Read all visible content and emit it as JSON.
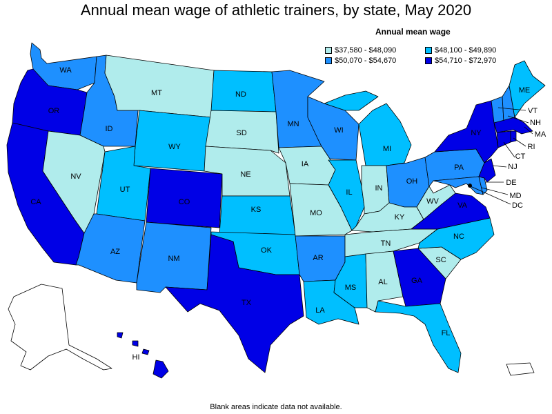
{
  "title": "Annual mean wage of athletic trainers, by state, May 2020",
  "legend": {
    "title": "Annual mean wage",
    "items": [
      {
        "label": "$37,580 - $48,090",
        "color": "#b0ecec"
      },
      {
        "label": "$48,100 - $49,890",
        "color": "#00bfff"
      },
      {
        "label": "$50,070 - $54,670",
        "color": "#1e90ff"
      },
      {
        "label": "$54,710 - $72,970",
        "color": "#0000e6"
      }
    ]
  },
  "state_labels": {
    "WA": "WA",
    "OR": "OR",
    "CA": "CA",
    "ID": "ID",
    "NV": "NV",
    "MT": "MT",
    "WY": "WY",
    "UT": "UT",
    "AZ": "AZ",
    "CO": "CO",
    "NM": "NM",
    "ND": "ND",
    "SD": "SD",
    "NE": "NE",
    "KS": "KS",
    "OK": "OK",
    "TX": "TX",
    "MN": "MN",
    "IA": "IA",
    "MO": "MO",
    "AR": "AR",
    "LA": "LA",
    "WI": "WI",
    "IL": "IL",
    "MI": "MI",
    "IN": "IN",
    "OH": "OH",
    "KY": "KY",
    "TN": "TN",
    "MS": "MS",
    "AL": "AL",
    "GA": "GA",
    "FL": "FL",
    "SC": "SC",
    "NC": "NC",
    "VA": "VA",
    "WV": "WV",
    "PA": "PA",
    "NY": "NY",
    "ME": "ME",
    "VT": "VT",
    "NH": "NH",
    "MA": "MA",
    "RI": "RI",
    "CT": "CT",
    "NJ": "NJ",
    "DE": "DE",
    "MD": "MD",
    "DC": "DC",
    "HI": "HI"
  },
  "footnote": "Blank areas indicate data not available."
}
